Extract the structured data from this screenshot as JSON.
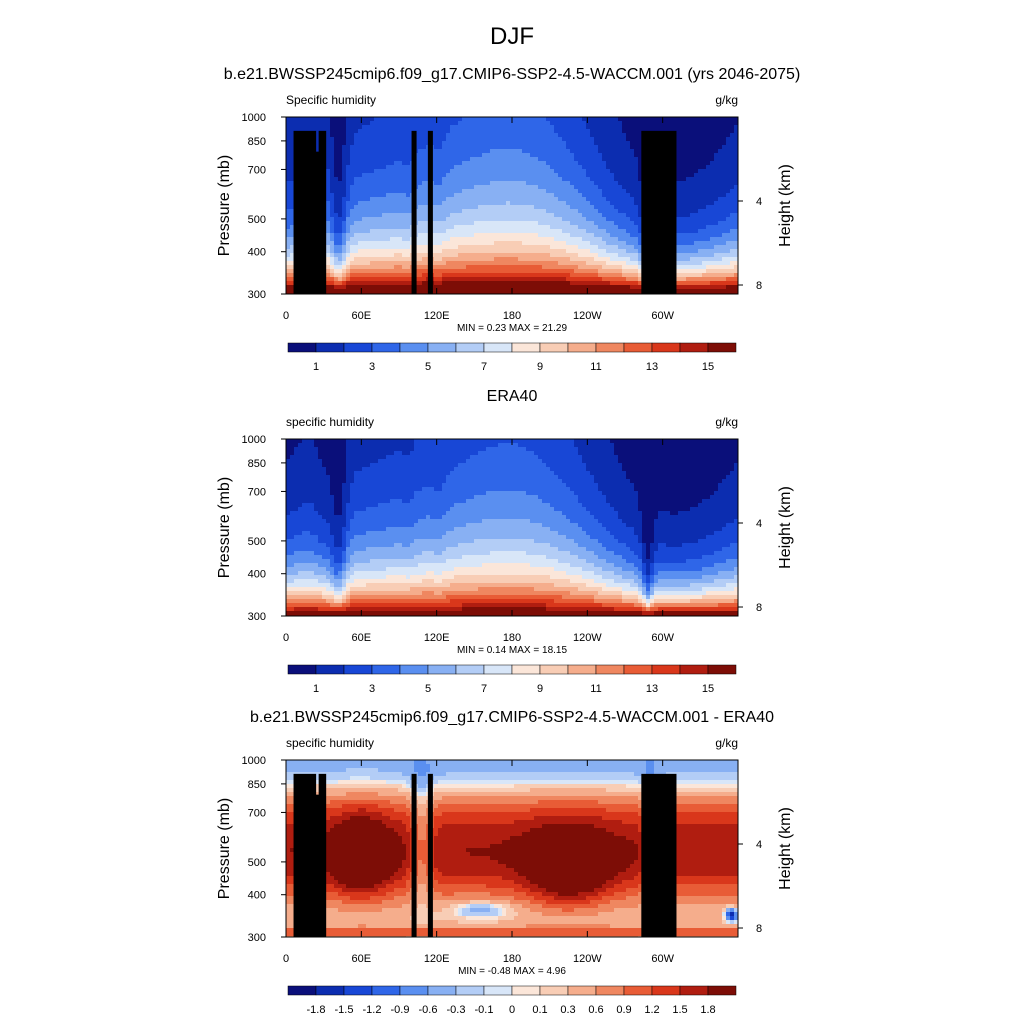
{
  "figure": {
    "title": "DJF",
    "subtitle": "b.e21.BWSSP245cmip6.f09_g17.CMIP6-SSP2-4.5-WACCM.001 (yrs 2046-2075)"
  },
  "chart_data": [
    {
      "type": "heatmap",
      "panel_title": "",
      "variable": "Specific humidity",
      "units": "g/kg",
      "xlabel": "",
      "ylabel": "Pressure (mb)",
      "y2label": "Height (km)",
      "xticks": [
        "0",
        "60E",
        "120E",
        "180",
        "120W",
        "60W"
      ],
      "xtick_lon": [
        0,
        60,
        120,
        180,
        240,
        300
      ],
      "xlim": [
        0,
        360
      ],
      "yticks": [
        "300",
        "400",
        "500",
        "700",
        "850",
        "1000"
      ],
      "ytick_p": [
        300,
        400,
        500,
        700,
        850,
        1000
      ],
      "ylim_mb": [
        1000,
        300
      ],
      "y2ticks": [
        "8",
        "4"
      ],
      "y2tick_km": [
        8,
        4
      ],
      "stats": "MIN =   0.23  MAX =  21.29",
      "colorbar_labels": [
        "1",
        "3",
        "5",
        "7",
        "9",
        "11",
        "13",
        "15"
      ],
      "field": "model",
      "topography": true
    },
    {
      "type": "heatmap",
      "panel_title": "ERA40",
      "variable": "specific humidity",
      "units": "g/kg",
      "xlabel": "",
      "ylabel": "Pressure (mb)",
      "y2label": "Height (km)",
      "xticks": [
        "0",
        "60E",
        "120E",
        "180",
        "120W",
        "60W"
      ],
      "xtick_lon": [
        0,
        60,
        120,
        180,
        240,
        300
      ],
      "xlim": [
        0,
        360
      ],
      "yticks": [
        "300",
        "400",
        "500",
        "700",
        "850",
        "1000"
      ],
      "ytick_p": [
        300,
        400,
        500,
        700,
        850,
        1000
      ],
      "ylim_mb": [
        1000,
        300
      ],
      "y2ticks": [
        "8",
        "4"
      ],
      "y2tick_km": [
        8,
        4
      ],
      "stats": "MIN =   0.14  MAX =  18.15",
      "colorbar_labels": [
        "1",
        "3",
        "5",
        "7",
        "9",
        "11",
        "13",
        "15"
      ],
      "field": "obs",
      "topography": false
    },
    {
      "type": "heatmap",
      "panel_title": "b.e21.BWSSP245cmip6.f09_g17.CMIP6-SSP2-4.5-WACCM.001 - ERA40",
      "variable": "specific humidity",
      "units": "g/kg",
      "xlabel": "",
      "ylabel": "Pressure (mb)",
      "y2label": "Height (km)",
      "xticks": [
        "0",
        "60E",
        "120E",
        "180",
        "120W",
        "60W"
      ],
      "xtick_lon": [
        0,
        60,
        120,
        180,
        240,
        300
      ],
      "xlim": [
        0,
        360
      ],
      "yticks": [
        "300",
        "400",
        "500",
        "700",
        "850",
        "1000"
      ],
      "ytick_p": [
        300,
        400,
        500,
        700,
        850,
        1000
      ],
      "ylim_mb": [
        1000,
        300
      ],
      "y2ticks": [
        "8",
        "4"
      ],
      "y2tick_km": [
        8,
        4
      ],
      "stats": "MIN =  -0.48  MAX =   4.96",
      "colorbar_labels": [
        "-1.8",
        "-1.5",
        "-1.2",
        "-0.9",
        "-0.6",
        "-0.3",
        "-0.1",
        "0",
        "0.1",
        "0.3",
        "0.6",
        "0.9",
        "1.2",
        "1.5",
        "1.8"
      ],
      "field": "diff",
      "topography": true
    }
  ],
  "colors": {
    "seq": [
      "#0a0f7a",
      "#0c2db0",
      "#1847d6",
      "#2f66e8",
      "#5a8ff0",
      "#88b0f3",
      "#b3cdf6",
      "#d8e6f8",
      "#fbe6d9",
      "#f8cdb5",
      "#f5ad8c",
      "#ef8760",
      "#e85c36",
      "#d9371b",
      "#b01d10",
      "#7d0d06"
    ],
    "div": [
      "#0a0f7a",
      "#0c2db0",
      "#1847d6",
      "#2f66e8",
      "#5a8ff0",
      "#88b0f3",
      "#b3cdf6",
      "#d8e6f8",
      "#fbe6d9",
      "#f8cdb5",
      "#f5ad8c",
      "#ef8760",
      "#e85c36",
      "#d9371b",
      "#b01d10",
      "#7d0d06"
    ]
  }
}
